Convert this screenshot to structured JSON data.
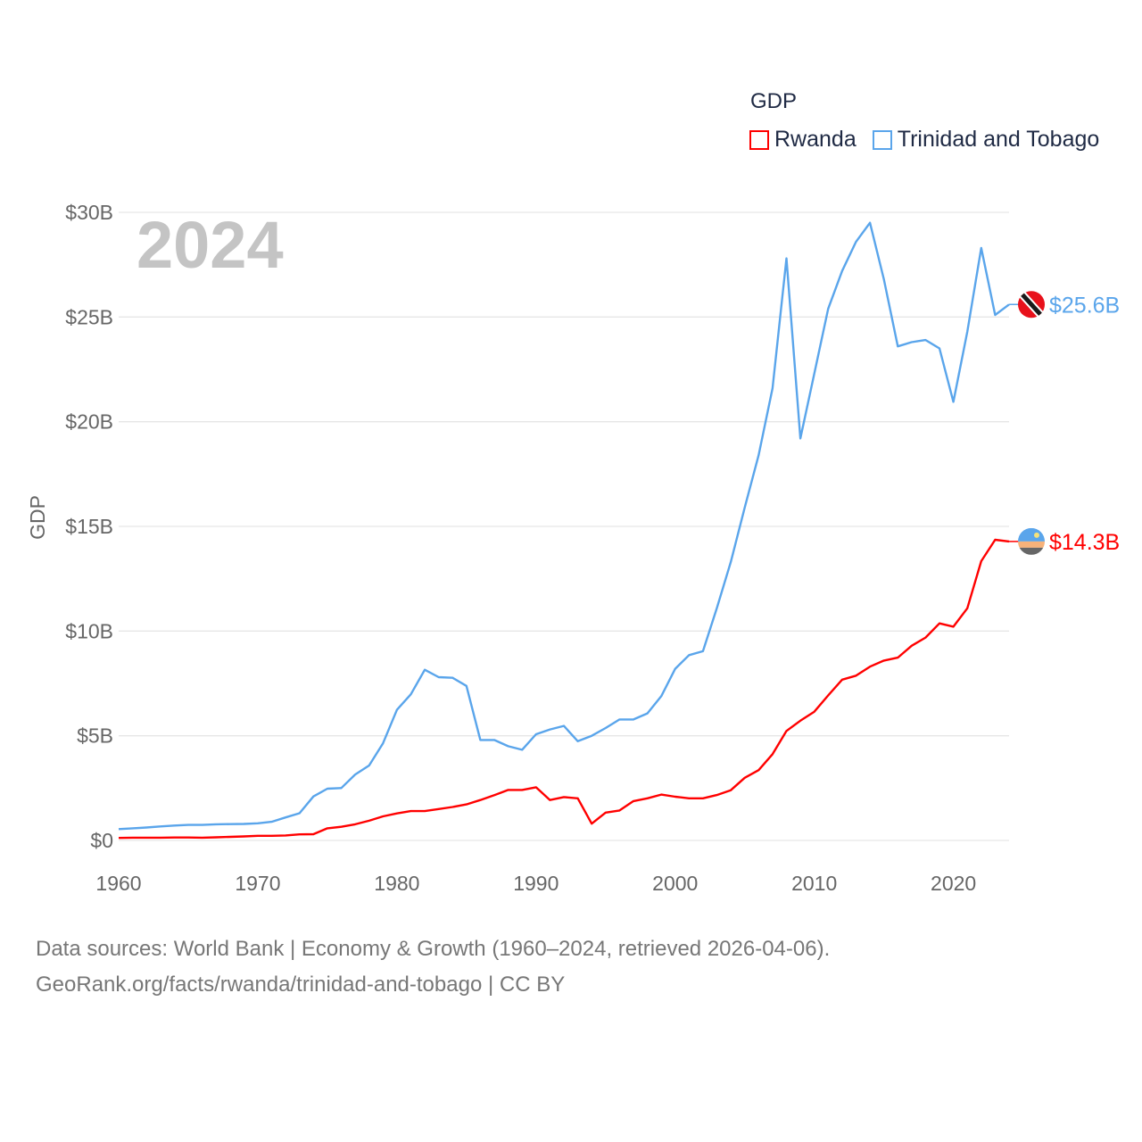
{
  "chart_data": {
    "type": "line",
    "title": "GDP",
    "year_label": "2024",
    "ylabel": "GDP",
    "xlabel": "",
    "xlim": [
      1960,
      2024
    ],
    "ylim": [
      0,
      30
    ],
    "x_ticks": [
      1960,
      1970,
      1980,
      1990,
      2000,
      2010,
      2020
    ],
    "y_ticks": [
      0,
      5,
      10,
      15,
      20,
      25,
      30
    ],
    "y_tick_labels": [
      "$0",
      "$5B",
      "$10B",
      "$15B",
      "$20B",
      "$25B",
      "$30B"
    ],
    "grid": true,
    "legend_position": "top-right",
    "x": [
      1960,
      1961,
      1962,
      1963,
      1964,
      1965,
      1966,
      1967,
      1968,
      1969,
      1970,
      1971,
      1972,
      1973,
      1974,
      1975,
      1976,
      1977,
      1978,
      1979,
      1980,
      1981,
      1982,
      1983,
      1984,
      1985,
      1986,
      1987,
      1988,
      1989,
      1990,
      1991,
      1992,
      1993,
      1994,
      1995,
      1996,
      1997,
      1998,
      1999,
      2000,
      2001,
      2002,
      2003,
      2004,
      2005,
      2006,
      2007,
      2008,
      2009,
      2010,
      2011,
      2012,
      2013,
      2014,
      2015,
      2016,
      2017,
      2018,
      2019,
      2020,
      2021,
      2022,
      2023,
      2024
    ],
    "series": [
      {
        "name": "Rwanda",
        "color": "#ff0000",
        "end_label": "$14.3B",
        "values": [
          0.12,
          0.13,
          0.13,
          0.13,
          0.14,
          0.14,
          0.13,
          0.15,
          0.17,
          0.19,
          0.22,
          0.22,
          0.24,
          0.29,
          0.3,
          0.58,
          0.65,
          0.77,
          0.94,
          1.15,
          1.29,
          1.4,
          1.4,
          1.5,
          1.6,
          1.72,
          1.93,
          2.16,
          2.41,
          2.41,
          2.54,
          1.93,
          2.07,
          2.01,
          0.8,
          1.33,
          1.43,
          1.88,
          2.01,
          2.19,
          2.09,
          2.01,
          2.01,
          2.17,
          2.4,
          2.99,
          3.36,
          4.12,
          5.23,
          5.72,
          6.15,
          6.93,
          7.68,
          7.87,
          8.3,
          8.59,
          8.73,
          9.3,
          9.69,
          10.37,
          10.21,
          11.09,
          13.34,
          14.36,
          14.28
        ]
      },
      {
        "name": "Trinidad and Tobago",
        "color": "#5aa5eb",
        "end_label": "$25.6B",
        "values": [
          0.54,
          0.58,
          0.62,
          0.67,
          0.71,
          0.74,
          0.74,
          0.77,
          0.78,
          0.79,
          0.82,
          0.89,
          1.1,
          1.3,
          2.1,
          2.47,
          2.5,
          3.15,
          3.58,
          4.64,
          6.24,
          6.98,
          8.15,
          7.8,
          7.77,
          7.38,
          4.8,
          4.8,
          4.5,
          4.33,
          5.07,
          5.3,
          5.47,
          4.74,
          5.0,
          5.37,
          5.78,
          5.78,
          6.07,
          6.89,
          8.2,
          8.85,
          9.04,
          11.1,
          13.3,
          15.9,
          18.4,
          21.6,
          27.8,
          19.2,
          22.3,
          25.4,
          27.2,
          28.6,
          29.5,
          26.8,
          23.6,
          23.8,
          23.9,
          23.5,
          20.95,
          24.3,
          28.3,
          25.1,
          25.6
        ]
      }
    ]
  },
  "footer": {
    "line1": "Data sources: World Bank | Economy & Growth (1960–2024, retrieved 2026-04-06).",
    "line2": "GeoRank.org/facts/rwanda/trinidad-and-tobago | CC BY"
  }
}
